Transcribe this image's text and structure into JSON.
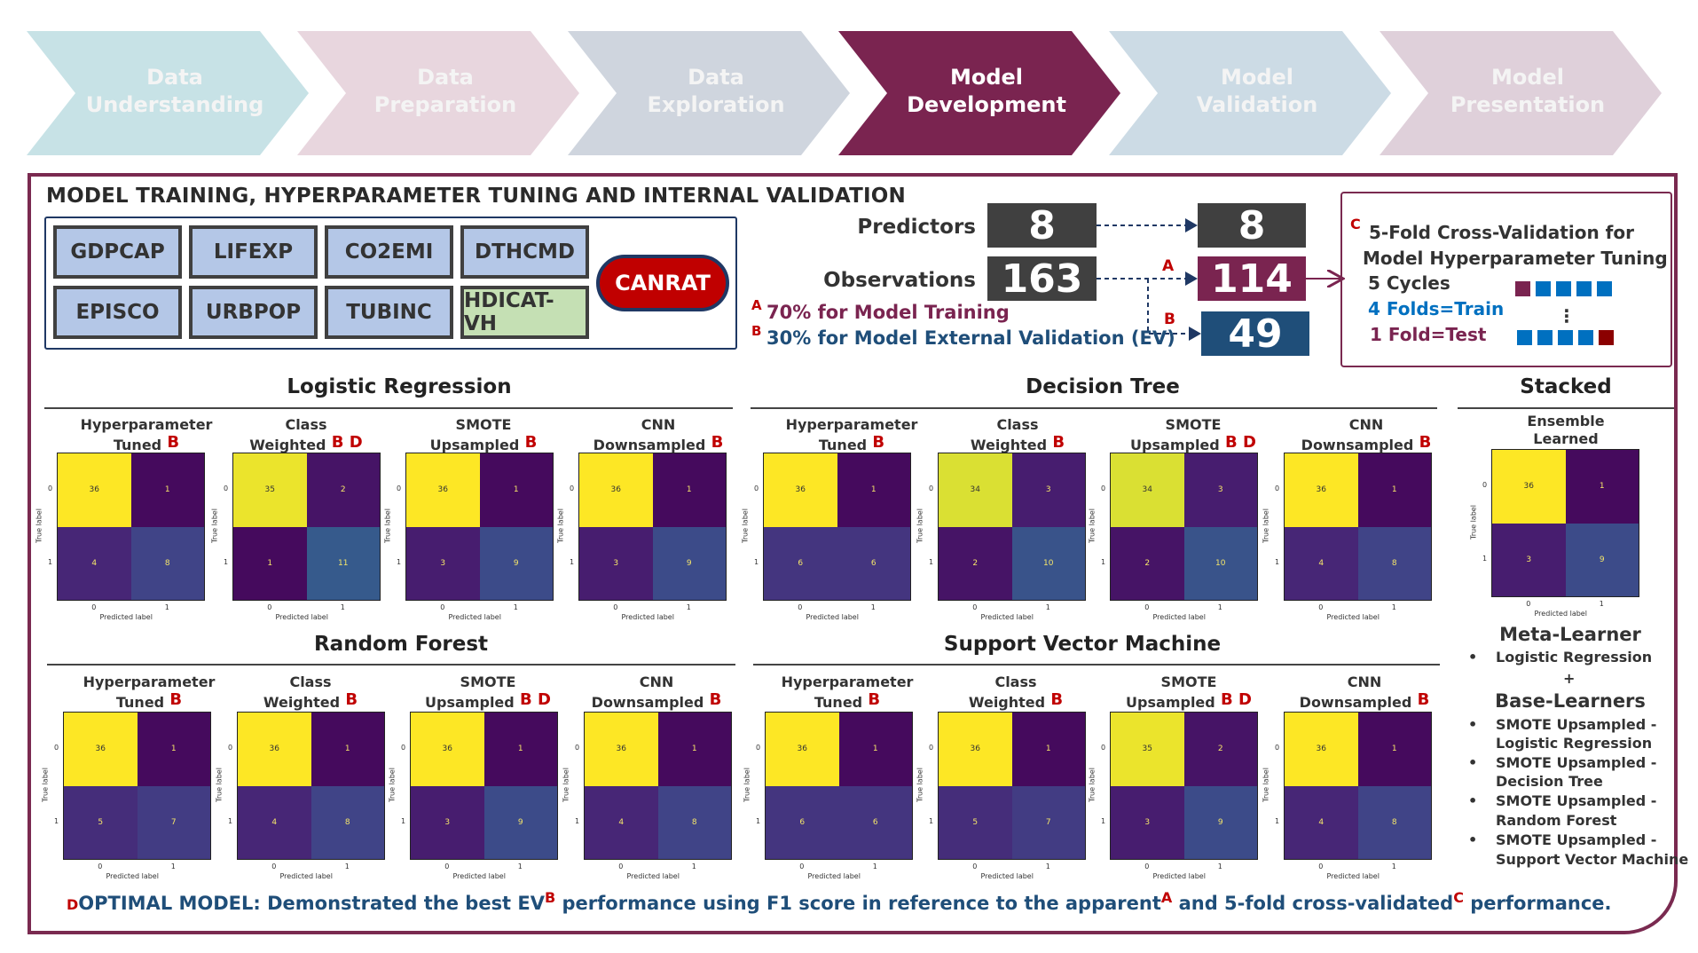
{
  "colors": {
    "chevron_fills": [
      "#c7e2e6",
      "#e8d6de",
      "#cfd5de",
      "#7a2450",
      "#ccdbe5",
      "#dfd0da"
    ],
    "chevron_text_active": "#ffffff",
    "chevron_text_inactive": "#f4f4f4",
    "panel_border": "#7a2a50",
    "accent_red": "#c00000",
    "navy": "#1f4e79",
    "blue": "#0070c0",
    "viridis_yellow": "#fde725",
    "viridis_dark": "#440154",
    "viridis_mid_dark": "#472d7b",
    "viridis_blue": "#3b528b",
    "viridis_teal": "#2c728e"
  },
  "chevrons": [
    {
      "line1": "Data",
      "line2": "Understanding",
      "active": false
    },
    {
      "line1": "Data",
      "line2": "Preparation",
      "active": false
    },
    {
      "line1": "Data",
      "line2": "Exploration",
      "active": false
    },
    {
      "line1": "Model",
      "line2": "Development",
      "active": true
    },
    {
      "line1": "Model",
      "line2": "Validation",
      "active": false
    },
    {
      "line1": "Model",
      "line2": "Presentation",
      "active": false
    }
  ],
  "panel": {
    "title": "MODEL TRAINING, HYPERPARAMETER TUNING AND INTERNAL VALIDATION",
    "variables": [
      "GDPCAP",
      "LIFEXP",
      "CO2EMI",
      "DTHCMD",
      "EPISCO",
      "URBPOP",
      "TUBINC",
      "HDICAT-VH"
    ],
    "outcome": "CANRAT"
  },
  "split": {
    "predictors_label": "Predictors",
    "observations_label": "Observations",
    "predictors_total": "8",
    "observations_total": "163",
    "predictors_after": "8",
    "train_count": "114",
    "test_count": "49",
    "label_a": "A",
    "label_b": "B",
    "note_a": "70% for Model Training",
    "note_b": "30% for Model External Validation (EV)"
  },
  "cv": {
    "sup": "C",
    "title_line1": "5-Fold Cross-Validation for",
    "title_line2": "Model Hyperparameter Tuning",
    "cycles": "5 Cycles",
    "train": "4 Folds=Train",
    "test": "1 Fold=Test",
    "ellipsis": "⋮"
  },
  "sections": {
    "lr": "Logistic Regression",
    "dt": "Decision Tree",
    "rf": "Random Forest",
    "svm": "Support Vector Machine",
    "stacked": "Stacked"
  },
  "matrix_axes": {
    "xlabel": "Predicted label",
    "ylabel": "True label",
    "tick0": "0",
    "tick1": "1"
  },
  "matrices": [
    {
      "section": "lr",
      "cap1": "Hyperparameter",
      "cap2": "Tuned",
      "sups": "B",
      "values": [
        36,
        1,
        4,
        8
      ]
    },
    {
      "section": "lr",
      "cap1": "Class",
      "cap2": "Weighted",
      "sups": "B D",
      "values": [
        35,
        2,
        1,
        11
      ]
    },
    {
      "section": "lr",
      "cap1": "SMOTE",
      "cap2": "Upsampled",
      "sups": "B",
      "values": [
        36,
        1,
        3,
        9
      ]
    },
    {
      "section": "lr",
      "cap1": "CNN",
      "cap2": "Downsampled",
      "sups": "B",
      "values": [
        36,
        1,
        3,
        9
      ]
    },
    {
      "section": "dt",
      "cap1": "Hyperparameter",
      "cap2": "Tuned",
      "sups": "B",
      "values": [
        36,
        1,
        6,
        6
      ]
    },
    {
      "section": "dt",
      "cap1": "Class",
      "cap2": "Weighted",
      "sups": "B",
      "values": [
        34,
        3,
        2,
        10
      ]
    },
    {
      "section": "dt",
      "cap1": "SMOTE",
      "cap2": "Upsampled",
      "sups": "B D",
      "values": [
        34,
        3,
        2,
        10
      ]
    },
    {
      "section": "dt",
      "cap1": "CNN",
      "cap2": "Downsampled",
      "sups": "B",
      "values": [
        36,
        1,
        4,
        8
      ]
    },
    {
      "section": "rf",
      "cap1": "Hyperparameter",
      "cap2": "Tuned",
      "sups": "B",
      "values": [
        36,
        1,
        5,
        7
      ]
    },
    {
      "section": "rf",
      "cap1": "Class",
      "cap2": "Weighted",
      "sups": "B",
      "values": [
        36,
        1,
        4,
        8
      ]
    },
    {
      "section": "rf",
      "cap1": "SMOTE",
      "cap2": "Upsampled",
      "sups": "B D",
      "values": [
        36,
        1,
        3,
        9
      ]
    },
    {
      "section": "rf",
      "cap1": "CNN",
      "cap2": "Downsampled",
      "sups": "B",
      "values": [
        36,
        1,
        4,
        8
      ]
    },
    {
      "section": "svm",
      "cap1": "Hyperparameter",
      "cap2": "Tuned",
      "sups": "B",
      "values": [
        36,
        1,
        6,
        6
      ]
    },
    {
      "section": "svm",
      "cap1": "Class",
      "cap2": "Weighted",
      "sups": "B",
      "values": [
        36,
        1,
        5,
        7
      ]
    },
    {
      "section": "svm",
      "cap1": "SMOTE",
      "cap2": "Upsampled",
      "sups": "B D",
      "values": [
        35,
        2,
        3,
        9
      ]
    },
    {
      "section": "svm",
      "cap1": "CNN",
      "cap2": "Downsampled",
      "sups": "B",
      "values": [
        36,
        1,
        4,
        8
      ]
    },
    {
      "section": "stacked",
      "cap1": "Ensemble",
      "cap2": "Learned",
      "sups": "",
      "values": [
        36,
        1,
        3,
        9
      ]
    }
  ],
  "stacked_info": {
    "meta_title": "Meta-Learner",
    "meta_item": "Logistic Regression",
    "plus": "+",
    "base_title": "Base-Learners",
    "base_items": [
      {
        "line1": "SMOTE Upsampled -",
        "line2": "Logistic Regression"
      },
      {
        "line1": "SMOTE Upsampled -",
        "line2": "Decision Tree"
      },
      {
        "line1": "SMOTE Upsampled -",
        "line2": "Random Forest"
      },
      {
        "line1": "SMOTE Upsampled -",
        "line2": "Support Vector Machine"
      }
    ]
  },
  "bottom_note": {
    "sup_d": "D",
    "text1": "OPTIMAL MODEL: Demonstrated the best EV",
    "sup_b": "B",
    "text2": " performance using F1 score in reference to the apparent",
    "sup_a": "A",
    "text3": " and 5-fold cross-validated",
    "sup_c": "C",
    "text4": " performance."
  }
}
